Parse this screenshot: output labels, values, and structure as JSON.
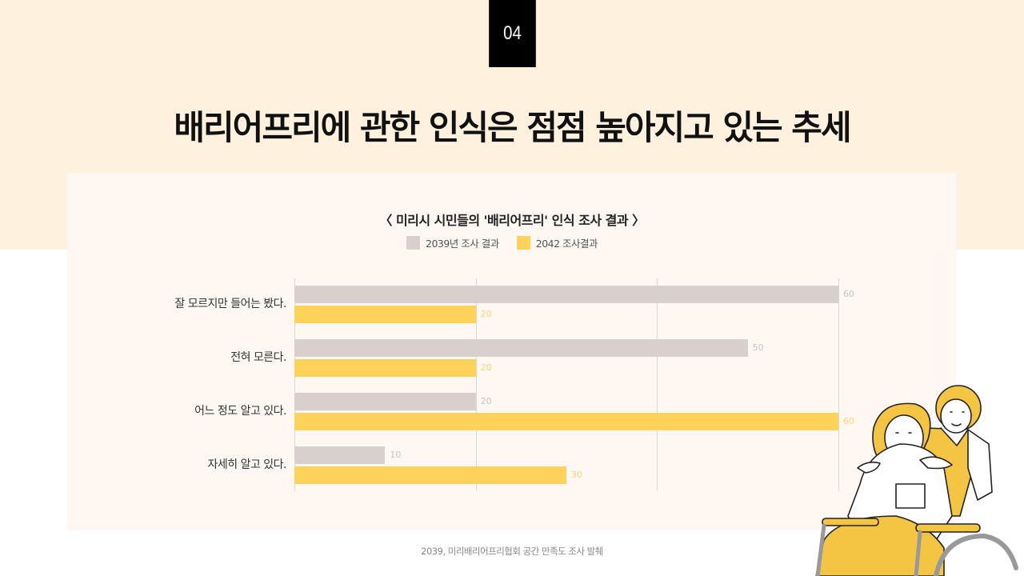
{
  "slide": {
    "page_number": "04",
    "title": "배리어프리에 관한 인식은 점점 높아지고 있는 추세",
    "source": "2039, 미리배리어프리협회 공간 만족도 조사 발췌"
  },
  "colors": {
    "top_band": "#FEF2DF",
    "card": "#FEF7F2",
    "series_2039": "#D8D0CC",
    "series_2042": "#FFD25A",
    "label_2039": "#C9C2BE",
    "label_2042": "#F5D57A"
  },
  "chart_data": {
    "type": "bar",
    "orientation": "horizontal",
    "title": "〈 미리시 시민들의 '배리어프리' 인식 조사 결과 〉",
    "categories": [
      "잘 모르지만 들어는 봤다.",
      "전혀 모른다.",
      "어느 정도 알고 있다.",
      "자세히 알고 있다."
    ],
    "series": [
      {
        "name": "2039년 조사 결과",
        "values": [
          60,
          50,
          20,
          10
        ]
      },
      {
        "name": "2042 조사결과",
        "values": [
          20,
          20,
          60,
          30
        ]
      }
    ],
    "xlabel": "",
    "ylabel": "",
    "xlim": [
      0,
      60
    ],
    "gridlines_at": [
      0,
      20,
      40,
      60
    ],
    "grid": true,
    "legend_position": "top",
    "data_labels": true
  }
}
